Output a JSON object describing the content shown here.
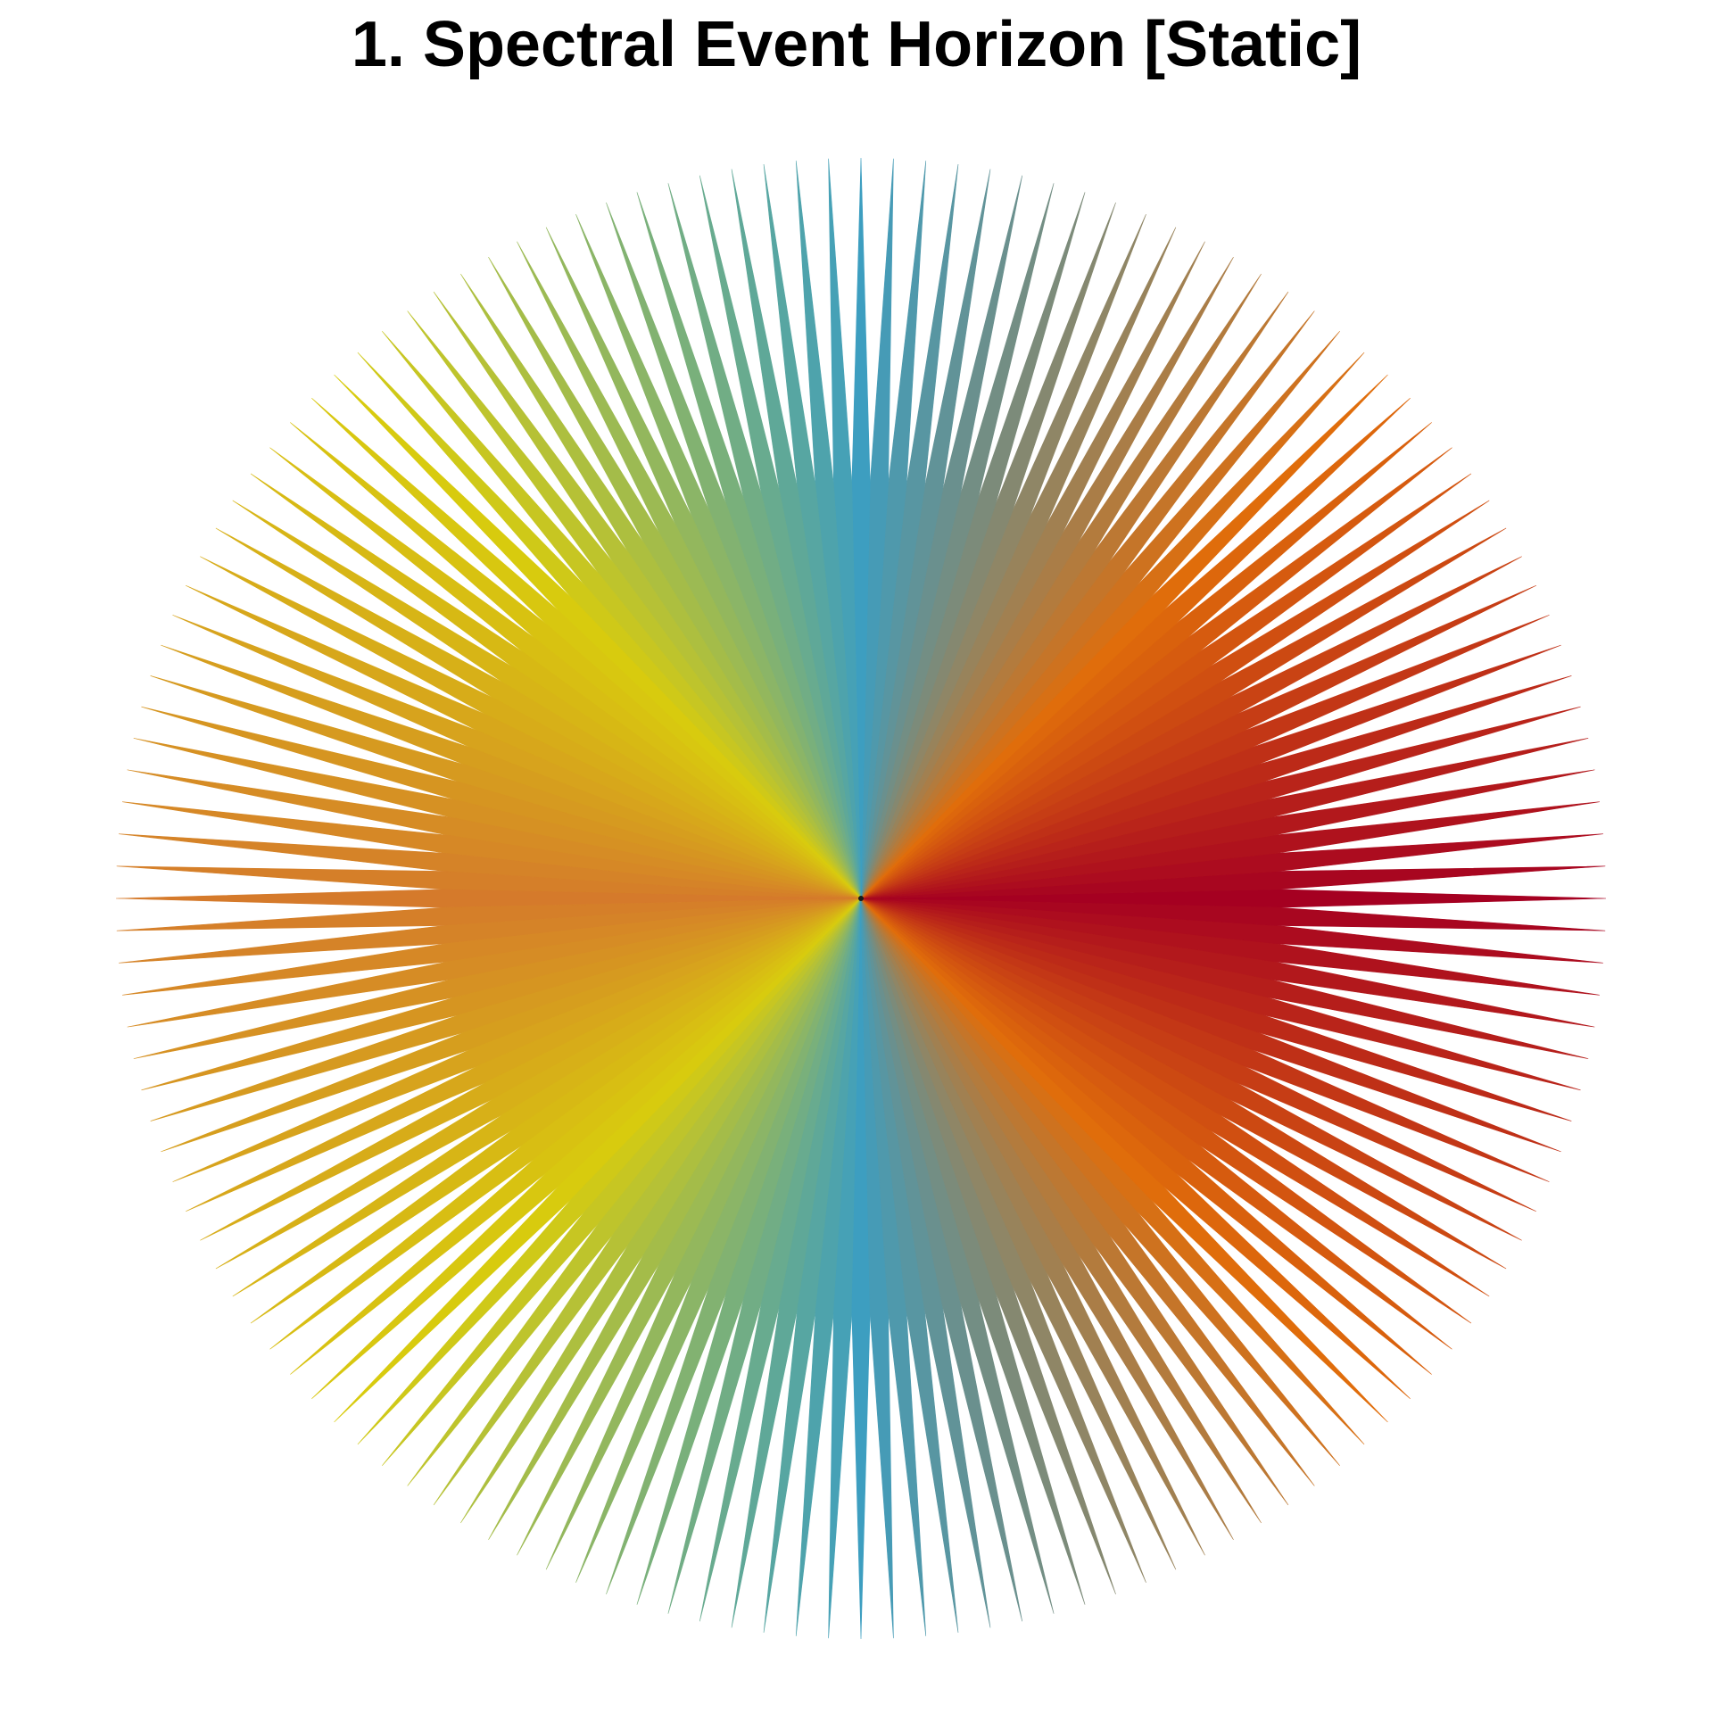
{
  "title": "1. Spectral Event Horizon [Static]",
  "artwork": {
    "shape": "radial starburst",
    "spike_count": 144,
    "palette": {
      "east": "#a50021",
      "north_east": "#e06d0b",
      "north": "#3d9ec0",
      "north_west": "#d8cb0e",
      "west": "#d57a2b",
      "south_west": "#d8cb0e",
      "south": "#3d9ec0",
      "south_east": "#e06d0b"
    },
    "center_color": "#1a1a1a",
    "background": "#ffffff"
  }
}
